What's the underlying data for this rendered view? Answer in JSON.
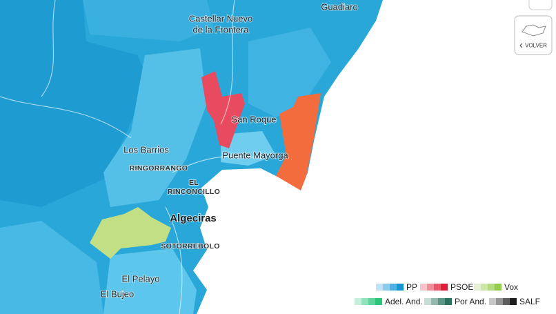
{
  "map": {
    "places": [
      {
        "lines": [
          "Guadiaro"
        ],
        "style": "town"
      },
      {
        "lines": [
          "Castellar Nuevo",
          "de la Frontera"
        ],
        "style": "town"
      },
      {
        "lines": [
          "San Roque"
        ],
        "style": "town"
      },
      {
        "lines": [
          "Los Barrios"
        ],
        "style": "town"
      },
      {
        "lines": [
          "RINGORRANGO"
        ],
        "style": "district"
      },
      {
        "lines": [
          "Puente Mayorga"
        ],
        "style": "town"
      },
      {
        "lines": [
          "EL",
          "RINCONCILLO"
        ],
        "style": "district"
      },
      {
        "lines": [
          "Algeciras"
        ],
        "style": "city"
      },
      {
        "lines": [
          "SOTORREBOLO"
        ],
        "style": "district"
      },
      {
        "lines": [
          "El Pelayo"
        ],
        "style": "town"
      },
      {
        "lines": [
          "El Bujeo"
        ],
        "style": "town"
      }
    ]
  },
  "legend": [
    {
      "name": "PP",
      "colors": [
        "#bfe3f5",
        "#8dcbec",
        "#4fb1e0",
        "#1596d2"
      ]
    },
    {
      "name": "PSOE",
      "colors": [
        "#f6c3c9",
        "#f08d99",
        "#e8586a",
        "#dc1f3a"
      ]
    },
    {
      "name": "Vox",
      "colors": [
        "#e3f1cf",
        "#cbe6a6",
        "#b3da7e",
        "#95cc4f"
      ]
    },
    {
      "name": "Adel. And.",
      "colors": [
        "#c7f0dc",
        "#93e2bb",
        "#5fd39a",
        "#2bc57a"
      ]
    },
    {
      "name": "Por And.",
      "colors": [
        "#c8dcd6",
        "#93b9ae",
        "#5e9686",
        "#2a735f"
      ]
    },
    {
      "name": "SALF",
      "colors": [
        "#c8c8c8",
        "#959595",
        "#5e5e5e",
        "#1e1e1e"
      ]
    }
  ],
  "button": {
    "label": "VOLVER"
  }
}
